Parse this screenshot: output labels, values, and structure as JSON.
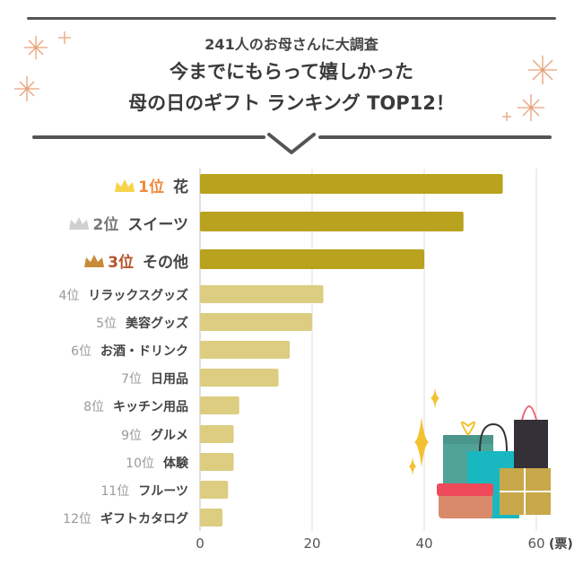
{
  "header": {
    "subtitle": "241人のお母さんに大調査",
    "title_line1": "今までにもらって嬉しかった",
    "title_line2": "母の日のギフト ランキング TOP12！"
  },
  "colors": {
    "top3_bar": "#b8a21e",
    "other_bar": "#dccd80",
    "gold": "#f7d44c",
    "silver": "#d0d0d0",
    "bronze": "#c98a3a",
    "rank1": "#f08a3c",
    "rank3": "#b4532a"
  },
  "chart_data": {
    "type": "bar",
    "orientation": "horizontal",
    "categories": [
      "花",
      "スイーツ",
      "その他",
      "リラックスグッズ",
      "美容グッズ",
      "お酒・ドリンク",
      "日用品",
      "キッチン用品",
      "グルメ",
      "体験",
      "フルーツ",
      "ギフトカタログ"
    ],
    "ranks": [
      "1位",
      "2位",
      "3位",
      "4位",
      "5位",
      "6位",
      "7位",
      "8位",
      "9位",
      "10位",
      "11位",
      "12位"
    ],
    "values": [
      54,
      47,
      40,
      22,
      20,
      16,
      14,
      7,
      6,
      6,
      5,
      4
    ],
    "xlim": [
      0,
      60
    ],
    "xticks": [
      "0",
      "20",
      "40",
      "60"
    ],
    "xunit": "(票)",
    "grid": true
  }
}
